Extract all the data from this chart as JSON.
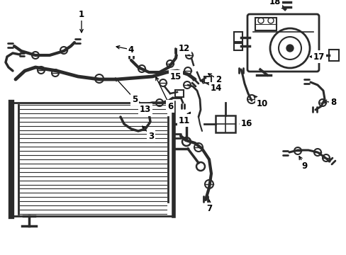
{
  "bg_color": "#ffffff",
  "line_color": "#2a2a2a",
  "label_color": "#000000",
  "figsize": [
    4.89,
    3.6
  ],
  "dpi": 100
}
